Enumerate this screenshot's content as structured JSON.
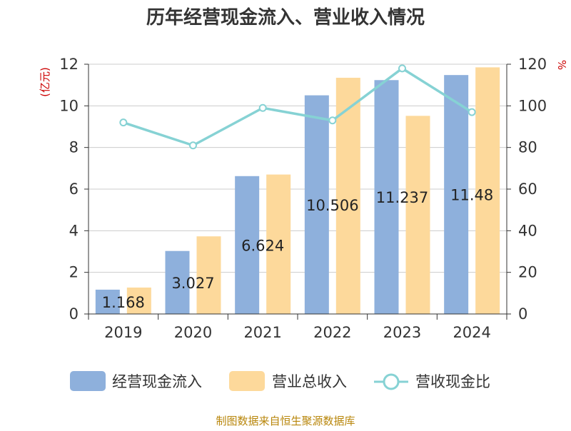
{
  "chart_data": {
    "type": "bar",
    "title": "历年经营现金流入、营业收入情况",
    "categories": [
      "2019",
      "2020",
      "2021",
      "2022",
      "2023",
      "2024"
    ],
    "left_axis": {
      "unit": "(亿元)",
      "min": 0,
      "max": 12,
      "ticks": [
        0,
        2,
        4,
        6,
        8,
        10,
        12
      ]
    },
    "right_axis": {
      "unit": "%",
      "min": 0,
      "max": 120,
      "ticks": [
        0,
        20,
        40,
        60,
        80,
        100,
        120
      ]
    },
    "series": [
      {
        "name": "经营现金流入",
        "type": "bar",
        "axis": "left",
        "color": "#8eb0dc",
        "values": [
          1.168,
          3.027,
          6.624,
          10.506,
          11.237,
          11.48
        ],
        "labels": [
          "1.168",
          "3.027",
          "6.624",
          "10.506",
          "11.237",
          "11.48"
        ]
      },
      {
        "name": "营业总收入",
        "type": "bar",
        "axis": "left",
        "color": "#fdd99b",
        "values": [
          1.27,
          3.73,
          6.7,
          11.35,
          9.52,
          11.85
        ]
      },
      {
        "name": "营收现金比",
        "type": "line",
        "axis": "right",
        "color": "#86d2d4",
        "values": [
          92,
          81,
          99,
          93,
          118,
          97
        ]
      }
    ],
    "grid": true,
    "legend_position": "bottom"
  },
  "source_text": "制图数据来自恒生聚源数据库",
  "colors": {
    "unit_label": "#cc0000",
    "source": "#b8860b",
    "axis": "#333333",
    "grid": "#cccccc"
  }
}
